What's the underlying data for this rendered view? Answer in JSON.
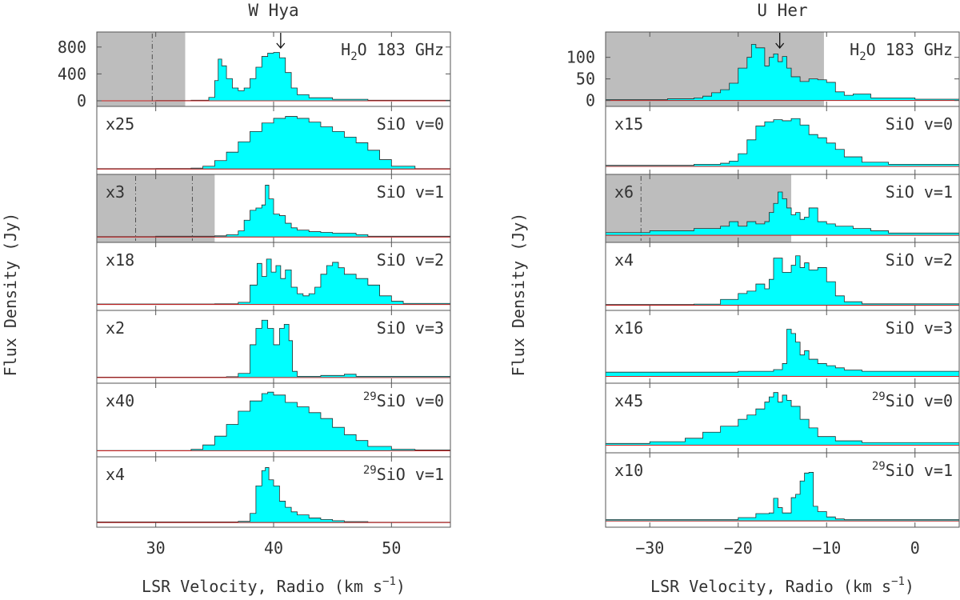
{
  "figure": {
    "ylabel": "Flux Density (Jy)",
    "xlabel_prefix": "LSR Velocity, Radio (km s",
    "xlabel_sup": "−1",
    "xlabel_suffix": ")"
  },
  "chart_data": [
    {
      "type": "line",
      "title": "W Hya",
      "xlim": [
        25,
        55
      ],
      "xticks": [
        30,
        40,
        50
      ],
      "panels": [
        {
          "name": "h2o",
          "label": "H2O 183 GHz",
          "scale": "",
          "ylim": [
            -60,
            1000
          ],
          "yticks": [
            0,
            400,
            800
          ],
          "shaded": [
            25,
            32.5
          ],
          "vlines": [
            29.7
          ],
          "arrow": 40.6,
          "x": [
            25,
            30,
            33,
            34.5,
            35,
            35.3,
            35.6,
            36,
            36.5,
            37,
            37.5,
            38,
            38.5,
            39,
            39.5,
            40,
            40.5,
            41,
            41.5,
            42,
            43,
            45,
            48,
            55
          ],
          "y": [
            0,
            4,
            8,
            50,
            300,
            620,
            520,
            330,
            190,
            150,
            190,
            330,
            500,
            660,
            710,
            720,
            640,
            420,
            190,
            90,
            45,
            22,
            8,
            0
          ]
        },
        {
          "name": "sio-v0",
          "label": "SiO v=0",
          "scale": "x25",
          "ylim": [
            -0.4,
            6.5
          ],
          "x": [
            25,
            30,
            33,
            34,
            35,
            36,
            37,
            38,
            39,
            40,
            41,
            42,
            43,
            44,
            45,
            46,
            47,
            48,
            49,
            50,
            52,
            55
          ],
          "y": [
            0.05,
            0.06,
            0.1,
            0.3,
            0.9,
            1.8,
            2.9,
            4.0,
            4.9,
            5.4,
            5.6,
            5.4,
            5.0,
            4.5,
            4.0,
            3.4,
            2.8,
            2.0,
            1.0,
            0.3,
            0.05,
            0.0
          ]
        },
        {
          "name": "sio-v1",
          "label": "SiO v=1",
          "scale": "x3",
          "ylim": [
            -5,
            80
          ],
          "shaded": [
            25,
            35
          ],
          "vlines": [
            28.3,
            33.1
          ],
          "x": [
            25,
            30,
            35,
            36,
            37,
            37.5,
            38,
            38.5,
            39,
            39.3,
            39.6,
            40,
            40.5,
            41,
            41.5,
            42,
            43,
            44,
            45,
            46,
            47,
            48,
            55
          ],
          "y": [
            0.5,
            1,
            1.5,
            3,
            8,
            22,
            35,
            38,
            42,
            68,
            50,
            30,
            28,
            18,
            12,
            9,
            7,
            6,
            5,
            5,
            3,
            1,
            0
          ]
        },
        {
          "name": "sio-v2",
          "label": "SiO v=2",
          "scale": "x18",
          "ylim": [
            -2,
            28
          ],
          "x": [
            25,
            35,
            37,
            38,
            38.6,
            39,
            39.4,
            39.8,
            40.2,
            40.6,
            41,
            41.5,
            42,
            42.5,
            43,
            43.5,
            44,
            44.5,
            45,
            45.5,
            46,
            47,
            48,
            49,
            50,
            51,
            55
          ],
          "y": [
            0.2,
            0.3,
            1.0,
            9,
            19,
            13,
            21,
            15,
            18,
            12,
            16,
            8,
            5,
            4,
            5,
            8,
            14,
            18,
            19.5,
            17,
            14,
            12,
            9,
            4,
            1.5,
            0.5,
            0
          ]
        },
        {
          "name": "sio-v3",
          "label": "SiO v=3",
          "scale": "x2",
          "ylim": [
            -1,
            16
          ],
          "x": [
            25,
            36,
            37,
            38,
            38.5,
            39,
            39.5,
            40,
            40.5,
            40.9,
            41.3,
            41.6,
            42,
            44,
            46,
            47,
            55
          ],
          "y": [
            0.1,
            0.2,
            1,
            8,
            12,
            14,
            12,
            8,
            12,
            13,
            9,
            1.5,
            0.3,
            0.5,
            0.8,
            0.3,
            0
          ]
        },
        {
          "name": "29sio-v0",
          "label": "29SiO v=0",
          "label_sup": "29",
          "label_main": "SiO v=0",
          "scale": "x40",
          "ylim": [
            -0.3,
            4.5
          ],
          "x": [
            25,
            33,
            34,
            35,
            36,
            37,
            38,
            39,
            39.5,
            40,
            41,
            42,
            43,
            44,
            45,
            46,
            47,
            48,
            50,
            52,
            55
          ],
          "y": [
            0.02,
            0.1,
            0.4,
            1.0,
            1.8,
            2.7,
            3.4,
            3.9,
            4.0,
            3.8,
            3.3,
            3.0,
            2.6,
            2.2,
            1.6,
            1.1,
            0.7,
            0.3,
            0.1,
            0.05,
            0.0
          ]
        },
        {
          "name": "29sio-v1",
          "label": "29SiO v=1",
          "label_sup": "29",
          "label_main": "SiO v=1",
          "scale": "x4",
          "ylim": [
            -1,
            21
          ],
          "x": [
            25,
            37,
            38,
            38.5,
            39,
            39.3,
            39.6,
            40,
            40.5,
            41,
            41.5,
            42,
            43,
            44,
            45,
            46,
            48,
            55
          ],
          "y": [
            0.2,
            0.4,
            3,
            12,
            17,
            18,
            14,
            12,
            7,
            5,
            3.5,
            2.5,
            1.5,
            1,
            0.6,
            0.3,
            0.1,
            0
          ]
        }
      ]
    },
    {
      "type": "line",
      "title": "U Her",
      "xlim": [
        -35,
        5
      ],
      "xticks": [
        -30,
        -20,
        -10,
        0
      ],
      "panels": [
        {
          "name": "h2o",
          "label": "H2O 183 GHz",
          "scale": "",
          "ylim": [
            -10,
            155
          ],
          "yticks": [
            0,
            50,
            100
          ],
          "shaded": [
            -35,
            -10.3
          ],
          "arrow": -15.3,
          "x": [
            -35,
            -28,
            -25,
            -24,
            -23,
            -22,
            -21,
            -20,
            -19,
            -18.5,
            -18,
            -17,
            -16.5,
            -16,
            -15.5,
            -15,
            -14.5,
            -14,
            -13,
            -12,
            -11,
            -10,
            -9,
            -8,
            -7,
            -5,
            0,
            5
          ],
          "y": [
            2,
            4,
            6,
            10,
            18,
            25,
            40,
            75,
            100,
            130,
            122,
            80,
            100,
            108,
            90,
            102,
            75,
            55,
            44,
            50,
            48,
            42,
            20,
            12,
            15,
            6,
            3,
            0
          ]
        },
        {
          "name": "sio-v0",
          "label": "SiO v=0",
          "scale": "x15",
          "ylim": [
            -0.6,
            5.5
          ],
          "x": [
            -35,
            -25,
            -22,
            -21,
            -20,
            -19,
            -18,
            -17,
            -16,
            -15,
            -14,
            -13,
            -12,
            -11,
            -10,
            -9,
            -8,
            -6,
            -3,
            5
          ],
          "y": [
            0.1,
            0.2,
            0.3,
            0.5,
            1.2,
            2.5,
            3.8,
            4.2,
            4.4,
            4.3,
            4.5,
            3.9,
            3.0,
            2.7,
            2.2,
            1.6,
            0.9,
            0.4,
            0.2,
            0.0
          ]
        },
        {
          "name": "sio-v1",
          "label": "SiO v=1",
          "scale": "x6",
          "ylim": [
            -1.2,
            13
          ],
          "shaded": [
            -35,
            -14
          ],
          "vlines": [
            -31
          ],
          "x": [
            -35,
            -30,
            -25,
            -22,
            -21,
            -20,
            -19,
            -18,
            -17,
            -16.5,
            -16,
            -15.5,
            -15,
            -14.5,
            -14,
            -13.5,
            -13,
            -12.5,
            -12,
            -11,
            -10,
            -9,
            -7,
            -5,
            -3,
            5
          ],
          "y": [
            0.6,
            1,
            1.5,
            2,
            3,
            2,
            3,
            2.5,
            3,
            5,
            7,
            9.5,
            8,
            6,
            4.5,
            5,
            3.5,
            4,
            6,
            3,
            2.5,
            2,
            1.5,
            1,
            0.5,
            0
          ]
        },
        {
          "name": "sio-v2",
          "label": "SiO v=2",
          "scale": "x4",
          "ylim": [
            -1.5,
            26
          ],
          "x": [
            -35,
            -25,
            -22,
            -20,
            -19,
            -18,
            -17,
            -16.5,
            -16,
            -15,
            -14,
            -13.5,
            -13,
            -12.5,
            -12,
            -11,
            -10,
            -9,
            -8,
            -6,
            5
          ],
          "y": [
            0.3,
            0.5,
            2.5,
            5,
            6,
            9,
            7,
            11,
            20,
            14,
            17,
            21,
            16,
            18,
            15,
            16,
            10,
            4,
            1.5,
            0.6,
            0
          ]
        },
        {
          "name": "sio-v3",
          "label": "SiO v=3",
          "scale": "x16",
          "ylim": [
            -1.2,
            15
          ],
          "x": [
            -35,
            -20,
            -16,
            -15,
            -14.5,
            -14,
            -13.5,
            -13,
            -12.5,
            -12,
            -11,
            -10,
            -9,
            -8,
            -6,
            5
          ],
          "y": [
            1,
            1.2,
            1.6,
            3,
            11,
            10,
            8,
            5,
            6,
            4,
            3,
            2.5,
            2,
            1.5,
            1.2,
            0.5
          ]
        },
        {
          "name": "29sio-v0",
          "label": "29SiO v=0",
          "label_sup": "29",
          "label_main": "SiO v=0",
          "scale": "x45",
          "ylim": [
            -0.7,
            7
          ],
          "x": [
            -35,
            -30,
            -26,
            -24,
            -22,
            -20,
            -19,
            -18,
            -17,
            -16.5,
            -16,
            -15.5,
            -15,
            -14.5,
            -14,
            -13,
            -12,
            -11,
            -9,
            -6,
            5
          ],
          "y": [
            0.2,
            0.4,
            0.8,
            1.5,
            2.2,
            3.0,
            3.5,
            4.2,
            5.0,
            5.6,
            6.1,
            5.0,
            5.8,
            5.2,
            4.5,
            3.0,
            2.0,
            1.0,
            0.5,
            0.3,
            0.2
          ]
        },
        {
          "name": "29sio-v1",
          "label": "29SiO v=1",
          "label_sup": "29",
          "label_main": "SiO v=1",
          "scale": "x10",
          "ylim": [
            -0.7,
            10
          ],
          "x": [
            -35,
            -20,
            -18,
            -16.5,
            -16,
            -15.5,
            -15,
            -14,
            -13.5,
            -13,
            -12.5,
            -12,
            -11.5,
            -11,
            -10,
            -9,
            -8,
            5
          ],
          "y": [
            0.2,
            0.5,
            1.1,
            1.2,
            3.4,
            2,
            1.2,
            3.5,
            4,
            6,
            7.2,
            7.3,
            2.2,
            1.4,
            0.6,
            0.3,
            0.2,
            0.1
          ]
        }
      ]
    }
  ]
}
